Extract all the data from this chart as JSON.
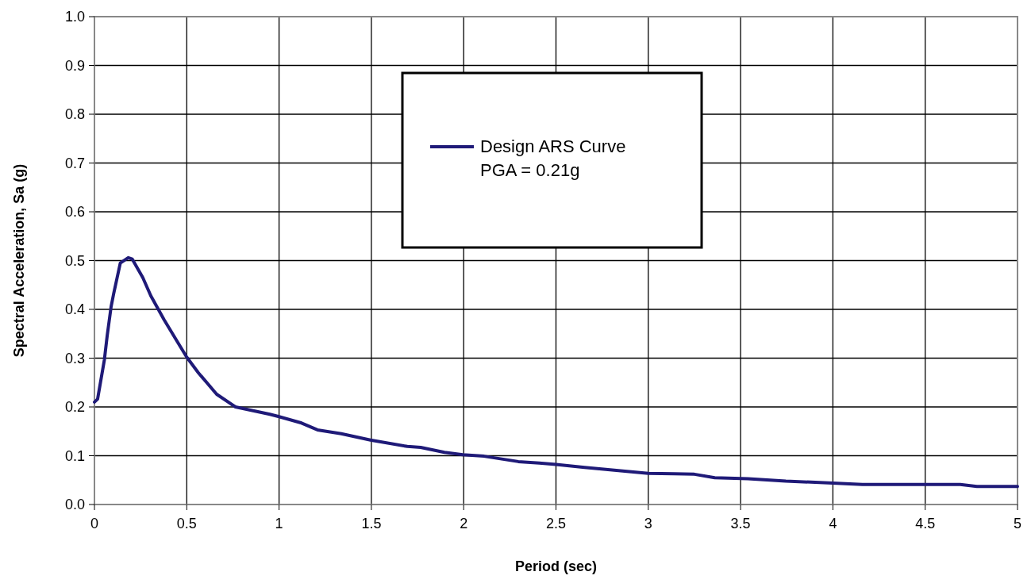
{
  "chart_data": {
    "type": "line",
    "xlabel": "Period (sec)",
    "ylabel": "Spectral Acceleration, Sa (g)",
    "xlim": [
      0,
      5
    ],
    "xticks": [
      0,
      0.5,
      1,
      1.5,
      2,
      2.5,
      3,
      3.5,
      4,
      4.5,
      5
    ],
    "ylim": [
      0,
      1
    ],
    "yticks": [
      {
        "value": 0,
        "label": "0.0"
      },
      {
        "value": 0.1,
        "label": "0.1"
      },
      {
        "value": 0.2,
        "label": "0.2"
      },
      {
        "value": 0.3,
        "label": "0.3"
      },
      {
        "value": 0.4,
        "label": "0.4"
      },
      {
        "value": 0.5,
        "label": "0.5"
      },
      {
        "value": 0.6,
        "label": "0.6"
      },
      {
        "value": 0.7,
        "label": "0.7"
      },
      {
        "value": 0.8,
        "label": "0.8"
      },
      {
        "value": 0.9,
        "label": "0.9"
      },
      {
        "value": 1,
        "label": "1.0"
      }
    ],
    "grid": true,
    "legend": "top",
    "marker": "none",
    "line_style": "solid",
    "series": [
      {
        "name": "Design ARS Curve\nPGA = 0.21g",
        "color": "#1f1a78",
        "x": [
          0,
          0.017,
          0.054,
          0.069,
          0.09,
          0.104,
          0.14,
          0.183,
          0.205,
          0.262,
          0.305,
          0.377,
          0.447,
          0.5,
          0.563,
          0.662,
          0.764,
          0.95,
          1.0,
          1.122,
          1.208,
          1.337,
          1.495,
          1.695,
          1.767,
          1.896,
          1.995,
          2.11,
          2.296,
          2.41,
          2.5,
          2.655,
          2.77,
          3.0,
          3.14,
          3.25,
          3.36,
          3.54,
          3.745,
          4.0,
          4.16,
          4.69,
          4.78,
          5.0
        ],
        "values": [
          0.21,
          0.216,
          0.297,
          0.346,
          0.405,
          0.432,
          0.495,
          0.506,
          0.503,
          0.465,
          0.428,
          0.379,
          0.335,
          0.302,
          0.27,
          0.226,
          0.2,
          0.185,
          0.18,
          0.167,
          0.153,
          0.145,
          0.132,
          0.119,
          0.117,
          0.107,
          0.102,
          0.099,
          0.088,
          0.085,
          0.082,
          0.076,
          0.072,
          0.064,
          0.063,
          0.062,
          0.055,
          0.053,
          0.048,
          0.044,
          0.041,
          0.041,
          0.037,
          0.037
        ]
      }
    ]
  }
}
